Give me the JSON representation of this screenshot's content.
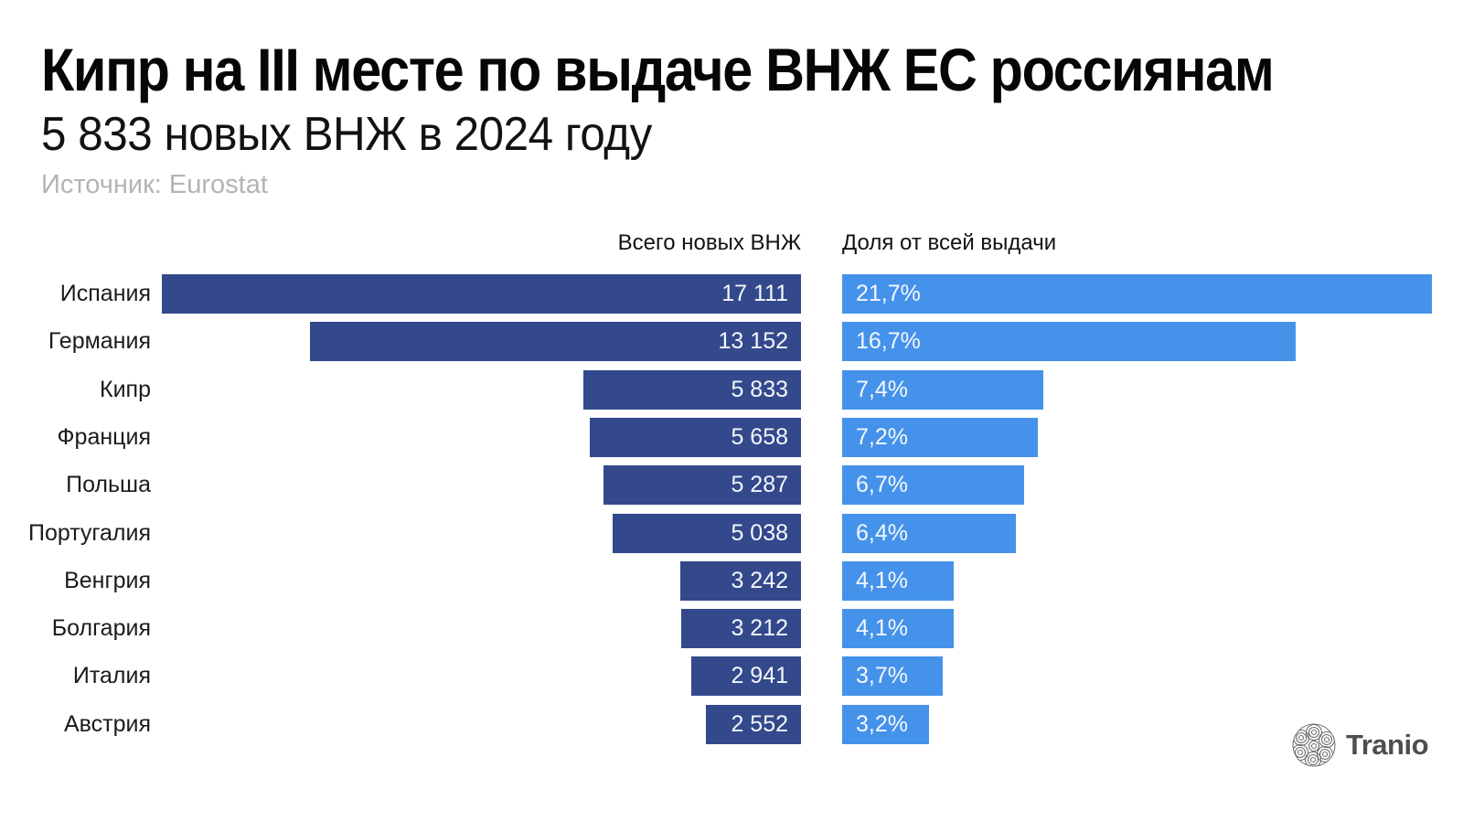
{
  "header": {
    "title": "Кипр на III месте по выдаче ВНЖ ЕС россиянам",
    "subtitle": "5 833 новых ВНЖ в 2024 году",
    "source": "Источник: Eurostat"
  },
  "chart_data": {
    "type": "bar",
    "orientation": "horizontal",
    "grid": false,
    "legend": "none",
    "columns": [
      "Всего новых ВНЖ",
      "Доля от всей выдачи"
    ],
    "categories": [
      "Испания",
      "Германия",
      "Кипр",
      "Франция",
      "Польша",
      "Португалия",
      "Венгрия",
      "Болгария",
      "Италия",
      "Австрия"
    ],
    "series": [
      {
        "name": "Всего новых ВНЖ",
        "values": [
          17111,
          13152,
          5833,
          5658,
          5287,
          5038,
          3242,
          3212,
          2941,
          2552
        ],
        "labels": [
          "17 111",
          "13 152",
          "5 833",
          "5 658",
          "5 287",
          "5 038",
          "3 242",
          "3 212",
          "2 941",
          "2 552"
        ],
        "color": "#34498C",
        "align": "right",
        "xlim": [
          0,
          17111
        ]
      },
      {
        "name": "Доля от всей выдачи",
        "values": [
          21.7,
          16.7,
          7.4,
          7.2,
          6.7,
          6.4,
          4.1,
          4.1,
          3.7,
          3.2
        ],
        "labels": [
          "21,7%",
          "16,7%",
          "7,4%",
          "7,2%",
          "6,7%",
          "6,4%",
          "4,1%",
          "4,1%",
          "3,7%",
          "3,2%"
        ],
        "color": "#4592EB",
        "align": "left",
        "xlim": [
          0,
          21.7
        ]
      }
    ]
  },
  "branding": {
    "logo_text": "Tranio"
  },
  "colors": {
    "total_bar": "#34498C",
    "share_bar": "#4592EB",
    "bar_text": "#F4F7FC",
    "source_text": "#B4B4B7",
    "logo_gray": "#6E6E6E"
  }
}
